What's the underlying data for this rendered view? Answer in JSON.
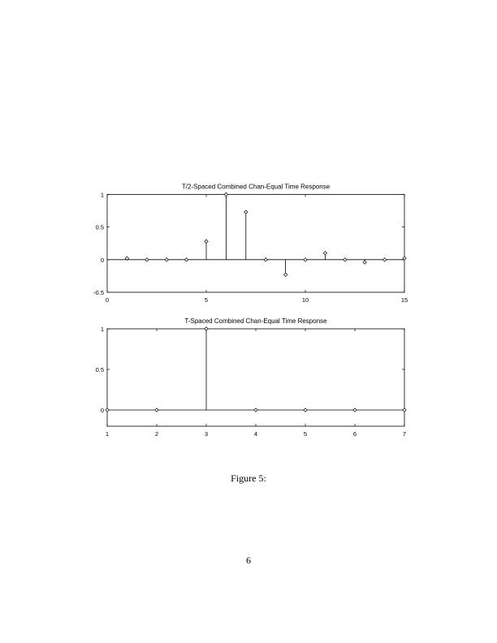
{
  "chart_data": [
    {
      "type": "stem",
      "title": "T/2-Spaced Combined Chan-Equal Time Response",
      "x": [
        1,
        2,
        3,
        4,
        5,
        6,
        7,
        8,
        9,
        10,
        11,
        12,
        13,
        14,
        15
      ],
      "values": [
        0.02,
        0,
        0,
        0,
        0.28,
        1,
        0.73,
        0,
        -0.23,
        0,
        0.1,
        0,
        -0.04,
        0,
        0.02
      ],
      "xlim": [
        0,
        15
      ],
      "ylim": [
        -0.5,
        1
      ],
      "xticks": [
        0,
        5,
        10,
        15
      ],
      "xtick_labels": [
        "0",
        "5",
        "10",
        "15"
      ],
      "yticks": [
        -0.5,
        0,
        0.5,
        1
      ],
      "ytick_labels": [
        "-0.5",
        "0",
        "0.5",
        "1"
      ],
      "grid": false,
      "marker": "diamond"
    },
    {
      "type": "stem",
      "title": "T-Spaced Combined Chan-Equal Time Response",
      "x": [
        1,
        2,
        3,
        4,
        5,
        6,
        7
      ],
      "values": [
        0,
        0,
        1,
        0,
        0,
        0,
        0
      ],
      "xlim": [
        1,
        7
      ],
      "ylim": [
        -0.2,
        1
      ],
      "xticks": [
        1,
        2,
        3,
        4,
        5,
        6,
        7
      ],
      "xtick_labels": [
        "1",
        "2",
        "3",
        "4",
        "5",
        "6",
        "7"
      ],
      "yticks": [
        0,
        0.5,
        1
      ],
      "ytick_labels": [
        "0",
        "0.5",
        "1"
      ],
      "grid": false,
      "marker": "diamond"
    }
  ],
  "caption": "Figure 5:",
  "page_number": "6"
}
